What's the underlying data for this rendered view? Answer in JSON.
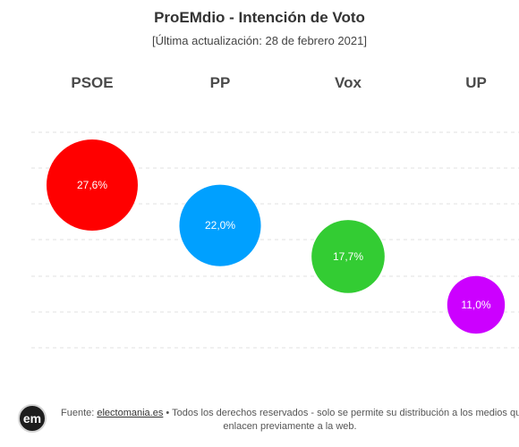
{
  "header": {
    "title": "ProEMdio - Intención de Voto",
    "subtitle": "[Última actualización: 28 de febrero 2021]"
  },
  "chart_data": {
    "type": "bubble",
    "title": "ProEMdio - Intención de Voto",
    "subtitle": "[Última actualización: 28 de febrero 2021]",
    "categories": [
      "PSOE",
      "PP",
      "Vox",
      "UP"
    ],
    "values": [
      27.6,
      22.0,
      17.7,
      11.0
    ],
    "value_labels": [
      "27,6%",
      "22,0%",
      "17,7%",
      "11,0%"
    ],
    "unit": "%",
    "colors": [
      "#ff0000",
      "#00a0ff",
      "#33cc33",
      "#cc00ff"
    ],
    "grid": true,
    "legend": "none"
  },
  "footer": {
    "logo_text": "em",
    "prefix": "Fuente: ",
    "link_text": "electomania.es",
    "line1_rest": " • Todos los derechos reservados - solo se permite su distribución a los medios que",
    "line2": "enlacen previamente a la web."
  }
}
